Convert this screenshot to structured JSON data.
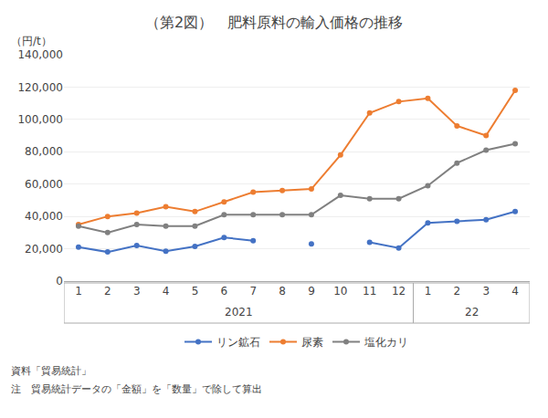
{
  "chart_data": {
    "type": "line",
    "title": "（第2図）　肥料原料の輸入価格の推移",
    "ylabel": "（円/t）",
    "categories": [
      "1",
      "2",
      "3",
      "4",
      "5",
      "6",
      "7",
      "8",
      "9",
      "10",
      "11",
      "12",
      "1",
      "2",
      "3",
      "4"
    ],
    "series": [
      {
        "name": "リン鉱石",
        "color": "#4472C4",
        "values": [
          21000,
          18000,
          22000,
          18500,
          21500,
          27000,
          25000,
          null,
          23000,
          null,
          24000,
          20500,
          36000,
          37000,
          38000,
          43000
        ]
      },
      {
        "name": "尿素",
        "color": "#ED7D31",
        "values": [
          35000,
          40000,
          42000,
          46000,
          43000,
          49000,
          55000,
          56000,
          57000,
          78000,
          104000,
          111000,
          113000,
          96000,
          90000,
          118000
        ]
      },
      {
        "name": "塩化カリ",
        "color": "#808080",
        "values": [
          34000,
          30000,
          35000,
          34000,
          34000,
          41000,
          41000,
          41000,
          41000,
          53000,
          51000,
          51000,
          59000,
          73000,
          81000,
          85000
        ]
      }
    ],
    "ylim": [
      0,
      140000
    ],
    "yticks": [
      0,
      {
        "value": 20000,
        "label": "20,000"
      },
      {
        "value": 40000,
        "label": "40,000"
      },
      {
        "value": 60000,
        "label": "60,000"
      },
      {
        "value": 80000,
        "label": "80,000"
      },
      {
        "value": 100000,
        "label": "100,000"
      },
      {
        "value": 120000,
        "label": "120,000"
      },
      {
        "value": 140000,
        "label": "140,000"
      }
    ],
    "grid": true,
    "legend": "bottom",
    "marker": "circle",
    "line_style": "solid",
    "annotations": [
      "2021",
      "22",
      "資料「貿易統計」",
      "注　貿易統計データの「金額」を「数量」で除して算出"
    ]
  }
}
